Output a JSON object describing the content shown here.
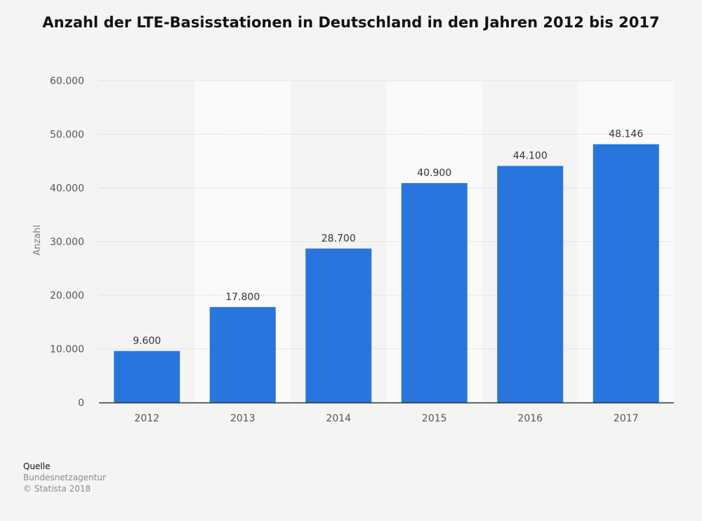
{
  "chart_data": {
    "type": "bar",
    "title": "Anzahl der LTE-Basisstationen in Deutschland in den Jahren 2012 bis 2017",
    "ylabel": "Anzahl",
    "xlabel": "",
    "categories": [
      "2012",
      "2013",
      "2014",
      "2015",
      "2016",
      "2017"
    ],
    "values": [
      9600,
      17800,
      28700,
      40900,
      44100,
      48146
    ],
    "value_labels": [
      "9.600",
      "17.800",
      "28.700",
      "40.900",
      "44.100",
      "48.146"
    ],
    "ylim": [
      0,
      60000
    ],
    "yticks": [
      0,
      10000,
      20000,
      30000,
      40000,
      50000,
      60000
    ],
    "ytick_labels": [
      "0",
      "10.000",
      "20.000",
      "30.000",
      "40.000",
      "50.000",
      "60.000"
    ],
    "grid": true,
    "bar_color": "#2876dd",
    "alternate_band_color": "#fafafa"
  },
  "source": {
    "heading": "Quelle",
    "name": "Bundesnetzagentur",
    "copyright": "© Statista 2018"
  }
}
